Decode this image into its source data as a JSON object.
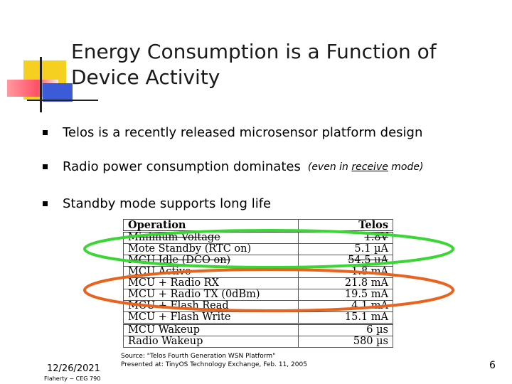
{
  "title": {
    "line1": "Energy Consumption is a Function of",
    "line2": "Device Activity"
  },
  "bullets": [
    {
      "text": "Telos is a recently released microsensor platform design"
    },
    {
      "text": "Radio power consumption dominates",
      "note_before": "(even in ",
      "note_underlined": "receive",
      "note_after": " mode)"
    },
    {
      "text": "Standby mode supports long life"
    }
  ],
  "table": {
    "headers": [
      "Operation",
      "Telos"
    ],
    "rows": [
      [
        "Minimum Voltage",
        "1.8V"
      ],
      [
        "Mote Standby (RTC on)",
        "5.1 µA"
      ],
      [
        "MCU Idle (DCO on)",
        "54.5 µA"
      ],
      [
        "MCU Active",
        "1.8 mA"
      ],
      [
        "MCU + Radio RX",
        "21.8 mA"
      ],
      [
        "MCU + Radio TX (0dBm)",
        "19.5 mA"
      ],
      [
        "MCU + Flash Read",
        "4.1 mA"
      ],
      [
        "MCU + Flash Write",
        "15.1 mA"
      ],
      [
        "MCU Wakeup",
        "6 µs"
      ],
      [
        "Radio Wakeup",
        "580 µs"
      ]
    ]
  },
  "highlights": {
    "standby_color": "#39d634",
    "radio_color": "#e8641e"
  },
  "footer": {
    "date": "12/26/2021",
    "author": "Flaherty − CEG 790",
    "source_line1": "Source: \"Telos Fourth Generation WSN Platform\"",
    "source_line2": "Presented at: TinyOS Technology Exchange, Feb. 11, 2005",
    "page": "6"
  },
  "accent_colors": {
    "yellow": "#f5d020",
    "red": "#ff5066",
    "blue": "#3c5bd8"
  }
}
